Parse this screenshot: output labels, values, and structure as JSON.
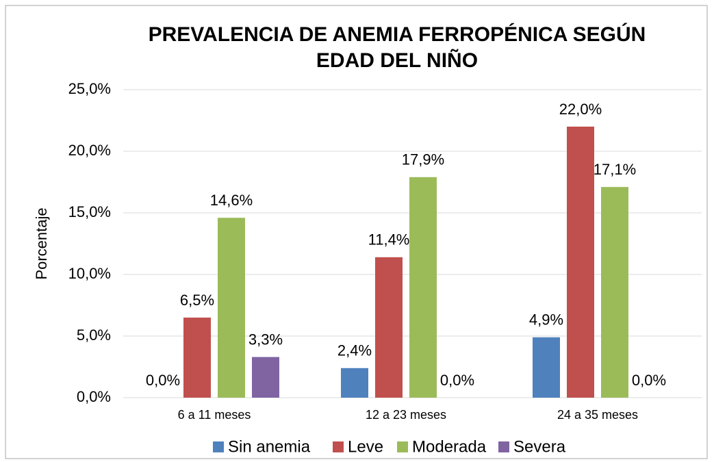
{
  "chart_data": {
    "type": "bar",
    "title": [
      "PREVALENCIA DE ANEMIA FERROPÉNICA SEGÚN",
      "EDAD DEL NIÑO"
    ],
    "y_label": "Porcentaje",
    "categories": [
      "6 a 11 meses",
      "12 a 23 meses",
      "24 a 35 meses"
    ],
    "series": [
      {
        "name": "Sin anemia",
        "color": "#4f81bd",
        "values": [
          0,
          2.4,
          4.9
        ],
        "value_labels": [
          "0,0%",
          "2,4%",
          "4,9%"
        ]
      },
      {
        "name": "Leve",
        "color": "#c0504d",
        "values": [
          6.5,
          11.4,
          22.0
        ],
        "value_labels": [
          "6,5%",
          "11,4%",
          "22,0%"
        ]
      },
      {
        "name": "Moderada",
        "color": "#9bbb59",
        "values": [
          14.6,
          17.9,
          17.1
        ],
        "value_labels": [
          "14,6%",
          "17,9%",
          "17,1%"
        ]
      },
      {
        "name": "Severa",
        "color": "#8064a2",
        "values": [
          3.3,
          0,
          0
        ],
        "value_labels": [
          "3,3%",
          "0,0%",
          "0,0%"
        ]
      }
    ],
    "ylim": [
      0,
      25
    ],
    "yticks": [
      {
        "value": 0,
        "label": "0,0%"
      },
      {
        "value": 5,
        "label": "5,0%"
      },
      {
        "value": 10,
        "label": "10,0%"
      },
      {
        "value": 15,
        "label": "15,0%"
      },
      {
        "value": 20,
        "label": "20,0%"
      },
      {
        "value": 25,
        "label": "25,0%"
      }
    ],
    "grid": true,
    "legend": "bottom"
  }
}
